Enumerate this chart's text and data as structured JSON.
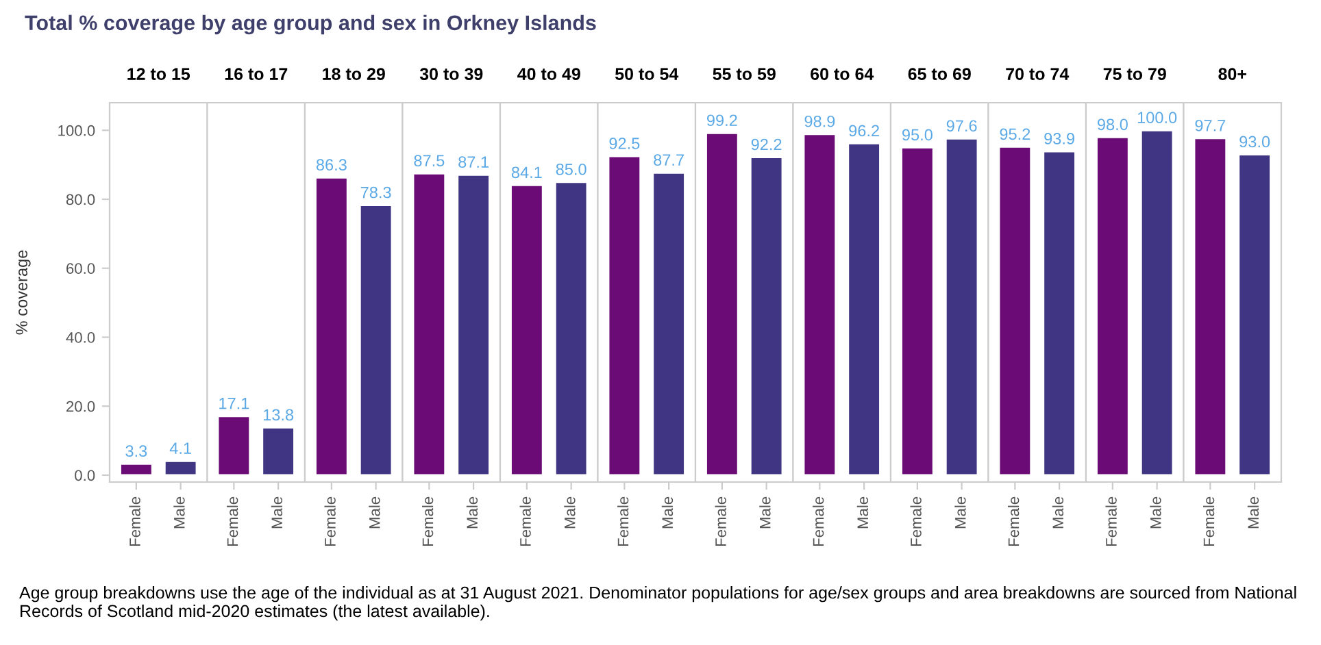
{
  "chart_data": [
    {
      "type": "other",
      "title": "Total % coverage by age group and sex in Orkney Islands",
      "annotations": [
        "Age group breakdowns use the age of the individual as at 31 August 2021. Denominator populations for age/sex groups and area breakdowns are sourced from National Records of Scotland mid-2020 estimates (the latest available)."
      ]
    },
    {
      "type": "bar",
      "title": "12 to 15",
      "ylabel": "% coverage",
      "categories": [
        "Female",
        "Male"
      ],
      "values": [
        3.3,
        4.1
      ],
      "value_labels": [
        "3.3",
        "4.1"
      ],
      "colors": [
        "#6b0b76",
        "#3f3582"
      ],
      "ylim": [
        -2,
        108
      ],
      "yticks": [
        {
          "value": 0,
          "label": "0.0"
        },
        {
          "value": 20,
          "label": "20.0"
        },
        {
          "value": 40,
          "label": "40.0"
        },
        {
          "value": 60,
          "label": "60.0"
        },
        {
          "value": 80,
          "label": "80.0"
        },
        {
          "value": 100,
          "label": "100.0"
        }
      ],
      "grid": false
    },
    {
      "type": "bar",
      "title": "16 to 17",
      "categories": [
        "Female",
        "Male"
      ],
      "values": [
        17.1,
        13.8
      ],
      "value_labels": [
        "17.1",
        "13.8"
      ],
      "colors": [
        "#6b0b76",
        "#3f3582"
      ],
      "ylim": [
        -2,
        108
      ],
      "tick_labels": "x",
      "grid": false
    },
    {
      "type": "bar",
      "title": "18 to 29",
      "categories": [
        "Female",
        "Male"
      ],
      "values": [
        86.3,
        78.3
      ],
      "value_labels": [
        "86.3",
        "78.3"
      ],
      "colors": [
        "#6b0b76",
        "#3f3582"
      ],
      "ylim": [
        -2,
        108
      ],
      "tick_labels": "x",
      "grid": false
    },
    {
      "type": "bar",
      "title": "30 to 39",
      "categories": [
        "Female",
        "Male"
      ],
      "values": [
        87.5,
        87.1
      ],
      "value_labels": [
        "87.5",
        "87.1"
      ],
      "colors": [
        "#6b0b76",
        "#3f3582"
      ],
      "ylim": [
        -2,
        108
      ],
      "tick_labels": "x",
      "grid": false
    },
    {
      "type": "bar",
      "title": "40 to 49",
      "categories": [
        "Female",
        "Male"
      ],
      "values": [
        84.1,
        85
      ],
      "value_labels": [
        "84.1",
        "85.0"
      ],
      "colors": [
        "#6b0b76",
        "#3f3582"
      ],
      "ylim": [
        -2,
        108
      ],
      "tick_labels": "x",
      "grid": false
    },
    {
      "type": "bar",
      "title": "50 to 54",
      "categories": [
        "Female",
        "Male"
      ],
      "values": [
        92.5,
        87.7
      ],
      "value_labels": [
        "92.5",
        "87.7"
      ],
      "colors": [
        "#6b0b76",
        "#3f3582"
      ],
      "ylim": [
        -2,
        108
      ],
      "tick_labels": "x",
      "grid": false
    },
    {
      "type": "bar",
      "title": "55 to 59",
      "categories": [
        "Female",
        "Male"
      ],
      "values": [
        99.2,
        92.2
      ],
      "value_labels": [
        "99.2",
        "92.2"
      ],
      "colors": [
        "#6b0b76",
        "#3f3582"
      ],
      "ylim": [
        -2,
        108
      ],
      "tick_labels": "x",
      "grid": false
    },
    {
      "type": "bar",
      "title": "60 to 64",
      "categories": [
        "Female",
        "Male"
      ],
      "values": [
        98.9,
        96.2
      ],
      "value_labels": [
        "98.9",
        "96.2"
      ],
      "colors": [
        "#6b0b76",
        "#3f3582"
      ],
      "ylim": [
        -2,
        108
      ],
      "tick_labels": "x",
      "grid": false
    },
    {
      "type": "bar",
      "title": "65 to 69",
      "categories": [
        "Female",
        "Male"
      ],
      "values": [
        95,
        97.6
      ],
      "value_labels": [
        "95.0",
        "97.6"
      ],
      "colors": [
        "#6b0b76",
        "#3f3582"
      ],
      "ylim": [
        -2,
        108
      ],
      "tick_labels": "x",
      "grid": false
    },
    {
      "type": "bar",
      "title": "70 to 74",
      "categories": [
        "Female",
        "Male"
      ],
      "values": [
        95.2,
        93.9
      ],
      "value_labels": [
        "95.2",
        "93.9"
      ],
      "colors": [
        "#6b0b76",
        "#3f3582"
      ],
      "ylim": [
        -2,
        108
      ],
      "tick_labels": "x",
      "grid": false
    },
    {
      "type": "bar",
      "title": "75 to 79",
      "categories": [
        "Female",
        "Male"
      ],
      "values": [
        98,
        100
      ],
      "value_labels": [
        "98.0",
        "100.0"
      ],
      "colors": [
        "#6b0b76",
        "#3f3582"
      ],
      "ylim": [
        -2,
        108
      ],
      "tick_labels": "x",
      "grid": false
    },
    {
      "type": "bar",
      "title": "80+",
      "categories": [
        "Female",
        "Male"
      ],
      "values": [
        97.7,
        93
      ],
      "value_labels": [
        "97.7",
        "93.0"
      ],
      "colors": [
        "#6b0b76",
        "#3f3582"
      ],
      "ylim": [
        -2,
        108
      ],
      "tick_labels": "x",
      "grid": false
    }
  ]
}
